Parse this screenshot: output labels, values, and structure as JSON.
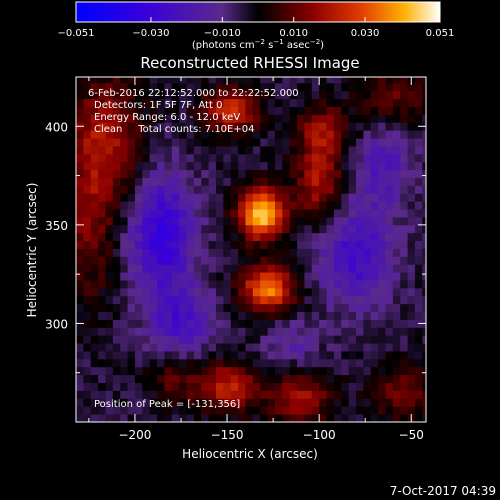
{
  "chart_data": {
    "type": "heatmap",
    "title": "Reconstructed RHESSI Image",
    "xlabel": "Heliocentric X (arcsec)",
    "ylabel": "Heliocentric Y (arcsec)",
    "xlim": [
      -232,
      -42
    ],
    "ylim": [
      250,
      425
    ],
    "x_ticks": [
      "−200",
      "−150",
      "−100",
      "−50"
    ],
    "x_tick_values": [
      -200,
      -150,
      -100,
      -50
    ],
    "y_ticks": [
      "400",
      "350",
      "300"
    ],
    "y_tick_values": [
      400,
      350,
      300
    ],
    "colorbar": {
      "min": -0.051,
      "max": 0.051,
      "ticks": [
        "−0.051",
        "−0.030",
        "−0.010",
        "0.010",
        "0.030",
        "0.051"
      ],
      "tick_values": [
        -0.051,
        -0.03,
        -0.01,
        0.01,
        0.03,
        0.051
      ],
      "units_prefix": "(photons cm",
      "units_exp1": "−2",
      "units_mid": " s",
      "units_exp2": "−1",
      "units_suffix": " asec",
      "units_exp3": "−2",
      "units_close": ")"
    },
    "info_lines": [
      "6-Feb-2016 22:12:52.000 to 22:22:52.000",
      "Detectors: 1F 5F 7F, Att 0",
      "Energy Range: 6.0 - 12.0 keV",
      "Clean     Total counts: 7.10E+04"
    ],
    "peak_label": "Position of Peak = [-131,356]",
    "peak": [
      -131,
      356
    ],
    "sources": [
      {
        "x": -131,
        "y": 356,
        "amp": 0.051,
        "sx": 9,
        "sy": 9
      },
      {
        "x": -128,
        "y": 318,
        "amp": 0.04,
        "sx": 10,
        "sy": 8
      },
      {
        "x": -148,
        "y": 408,
        "amp": 0.028,
        "sx": 11,
        "sy": 8
      },
      {
        "x": -100,
        "y": 372,
        "amp": 0.024,
        "sx": 9,
        "sy": 14
      },
      {
        "x": -98,
        "y": 398,
        "amp": 0.02,
        "sx": 10,
        "sy": 9
      },
      {
        "x": -215,
        "y": 395,
        "amp": 0.022,
        "sx": 14,
        "sy": 22
      },
      {
        "x": -225,
        "y": 350,
        "amp": 0.016,
        "sx": 10,
        "sy": 28
      },
      {
        "x": -150,
        "y": 268,
        "amp": 0.026,
        "sx": 12,
        "sy": 9
      },
      {
        "x": -110,
        "y": 262,
        "amp": 0.022,
        "sx": 12,
        "sy": 9
      },
      {
        "x": -55,
        "y": 265,
        "amp": 0.016,
        "sx": 12,
        "sy": 10
      },
      {
        "x": -60,
        "y": 415,
        "amp": 0.014,
        "sx": 14,
        "sy": 10
      },
      {
        "x": -180,
        "y": 272,
        "amp": 0.012,
        "sx": 10,
        "sy": 9
      },
      {
        "x": -185,
        "y": 345,
        "amp": -0.028,
        "sx": 12,
        "sy": 22
      },
      {
        "x": -80,
        "y": 335,
        "amp": -0.022,
        "sx": 14,
        "sy": 18
      },
      {
        "x": -65,
        "y": 380,
        "amp": -0.016,
        "sx": 10,
        "sy": 14
      },
      {
        "x": -175,
        "y": 300,
        "amp": -0.018,
        "sx": 12,
        "sy": 12
      },
      {
        "x": -115,
        "y": 290,
        "amp": -0.01,
        "sx": 10,
        "sy": 8
      }
    ]
  },
  "footer": {
    "timestamp": "7-Oct-2017 04:39"
  }
}
